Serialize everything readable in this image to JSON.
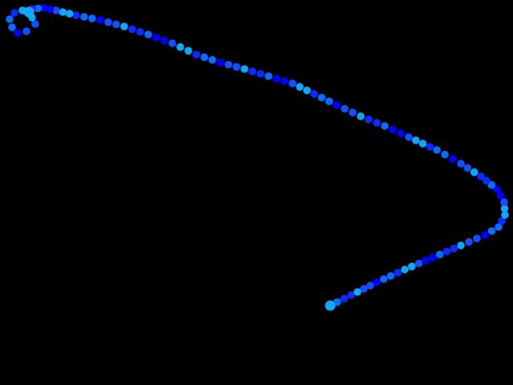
{
  "scene": {
    "background_color": "#000000",
    "trail_colors": [
      "#0000ff",
      "#0a2cff",
      "#1450ff",
      "#0b6cff",
      "#12a6ff"
    ],
    "endpoint_color": "#16a8ff"
  }
}
